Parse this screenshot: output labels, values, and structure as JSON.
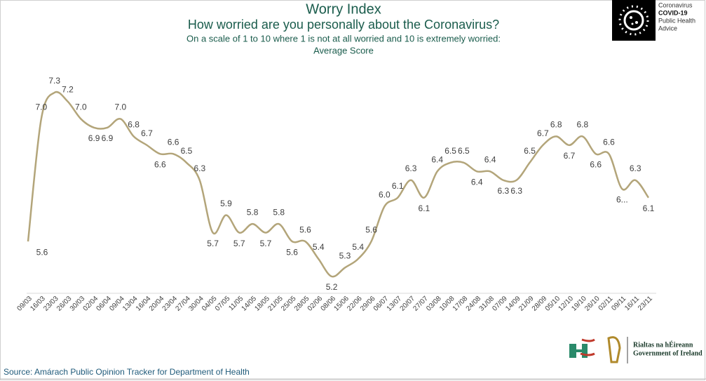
{
  "chart_data": {
    "type": "line",
    "title": "Worry Index",
    "subtitle": "How worried are you personally about the Coronavirus?",
    "description": [
      "On a scale of 1 to 10  where 1 is not at all worried and 10 is extremely worried:",
      "Average Score"
    ],
    "categories": [
      "09/03",
      "16/03",
      "23/03",
      "26/03",
      "30/03",
      "02/04",
      "06/04",
      "09/04",
      "13/04",
      "16/04",
      "20/04",
      "23/04",
      "27/04",
      "30/04",
      "04/05",
      "07/05",
      "11/05",
      "14/05",
      "18/05",
      "21/05",
      "25/05",
      "28/05",
      "02/06",
      "08/06",
      "15/06",
      "22/06",
      "29/06",
      "06/07",
      "13/07",
      "20/07",
      "27/07",
      "03/08",
      "10/08",
      "17/08",
      "24/08",
      "31/08",
      "07/09",
      "14/09",
      "21/09",
      "28/09",
      "05/10",
      "12/10",
      "19/10",
      "26/10",
      "02/11",
      "09/11",
      "16/11",
      "23/11"
    ],
    "values": [
      5.6,
      7.0,
      7.3,
      7.2,
      7.0,
      6.9,
      6.9,
      7.0,
      6.8,
      6.7,
      6.6,
      6.6,
      6.5,
      6.3,
      5.7,
      5.9,
      5.7,
      5.8,
      5.7,
      5.8,
      5.6,
      5.6,
      5.4,
      5.2,
      5.3,
      5.4,
      5.6,
      6.0,
      6.1,
      6.3,
      6.1,
      6.4,
      6.5,
      6.5,
      6.4,
      6.4,
      6.3,
      6.3,
      6.5,
      6.7,
      6.8,
      6.7,
      6.8,
      6.6,
      6.6,
      6.2,
      6.3,
      6.1
    ],
    "value_labels": [
      "5.6",
      "7.0",
      "7.3",
      "7.2",
      "7.0",
      "6.9",
      "6.9",
      "7.0",
      "6.8",
      "6.7",
      "6.6",
      "6.6",
      "6.5",
      "6.3",
      "5.7",
      "5.9",
      "5.7",
      "5.8",
      "5.7",
      "5.8",
      "5.6",
      "5.6",
      "5.4",
      "5.2",
      "5.3",
      "5.4",
      "5.6",
      "6.0",
      "6.1",
      "6.3",
      "6.1",
      "6.4",
      "6.5",
      "6.5",
      "6.4",
      "6.4",
      "6.3",
      "6.3",
      "6.5",
      "6.7",
      "6.8",
      "6.7",
      "6.8",
      "6.6",
      "6.6",
      "6...",
      "6.3",
      "6.1"
    ],
    "color": "#b3a57a",
    "source": "Source: Amárach Public Opinion Tracker for Department of Health"
  },
  "logos": {
    "covid": [
      "Coronavirus",
      "COVID-19",
      "Public Health",
      "Advice"
    ],
    "government": [
      "Rialtas na hÉireann",
      "Government of Ireland"
    ]
  }
}
